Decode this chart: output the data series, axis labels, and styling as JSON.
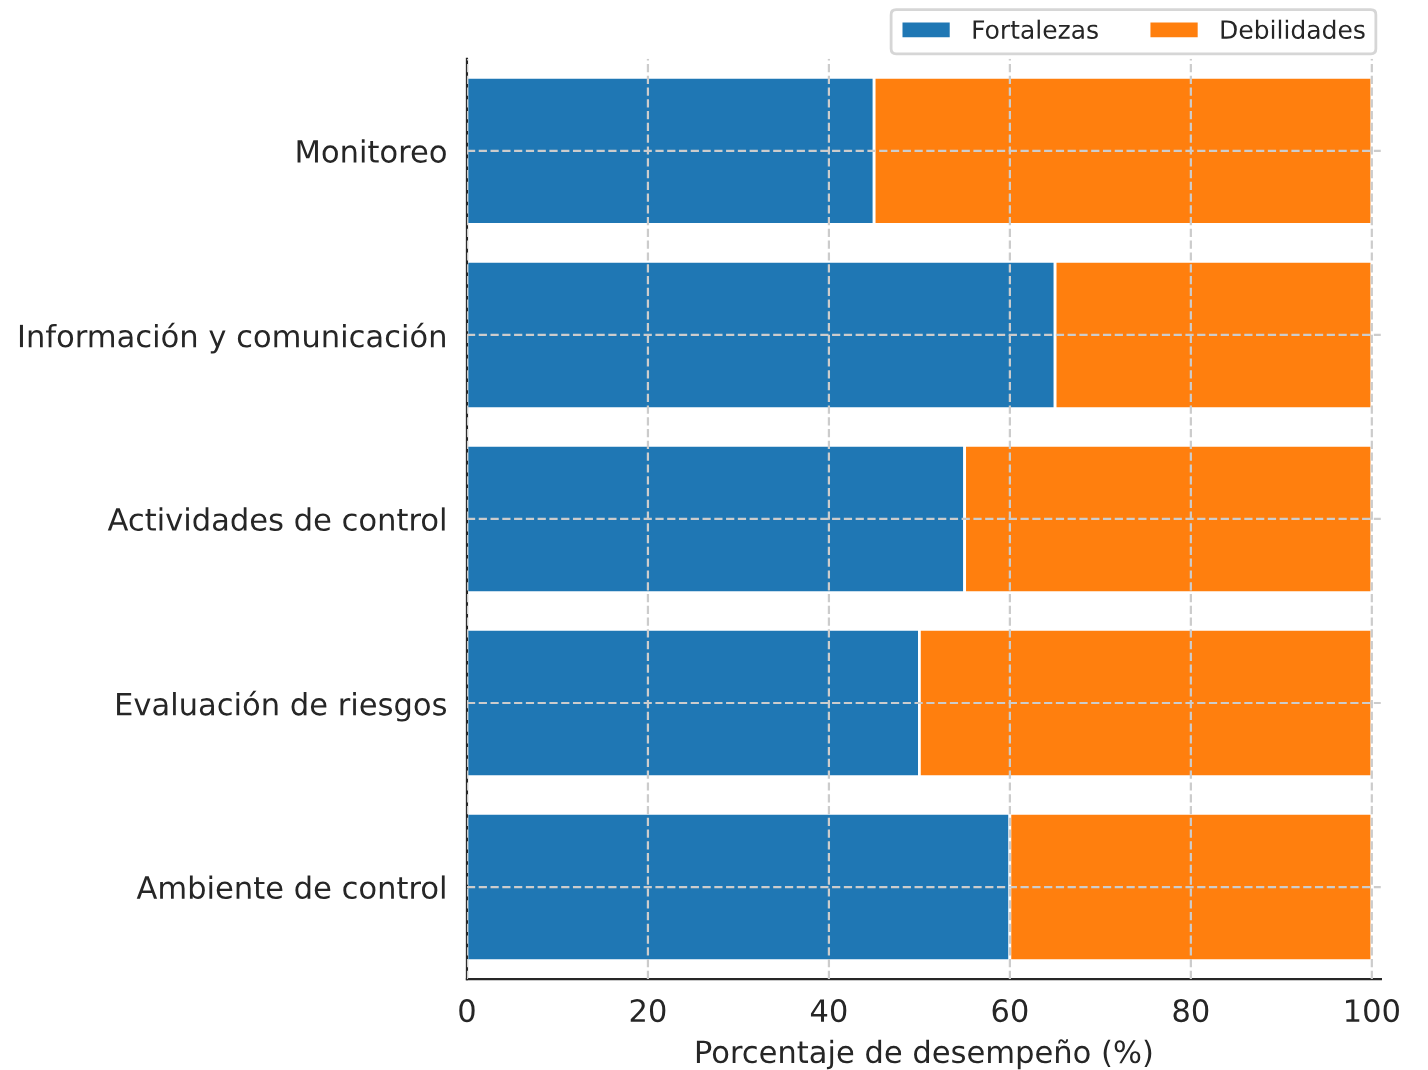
{
  "chart_data": {
    "type": "bar",
    "orientation": "horizontal",
    "stacked": true,
    "xlabel": "Porcentaje de desempeño (%)",
    "categories": [
      "Monitoreo",
      "Información y comunicación",
      "Actividades de control",
      "Evaluación de riesgos",
      "Ambiente de control"
    ],
    "series": [
      {
        "name": "Fortalezas",
        "color": "#1f77b4",
        "values": [
          45,
          65,
          55,
          50,
          60
        ]
      },
      {
        "name": "Debilidades",
        "color": "#ff7f0e",
        "values": [
          55,
          35,
          45,
          50,
          40
        ]
      }
    ],
    "xlim": [
      0,
      101
    ],
    "xticks": [
      0,
      20,
      40,
      60,
      80,
      100
    ],
    "grid": true,
    "legend": "top right"
  }
}
